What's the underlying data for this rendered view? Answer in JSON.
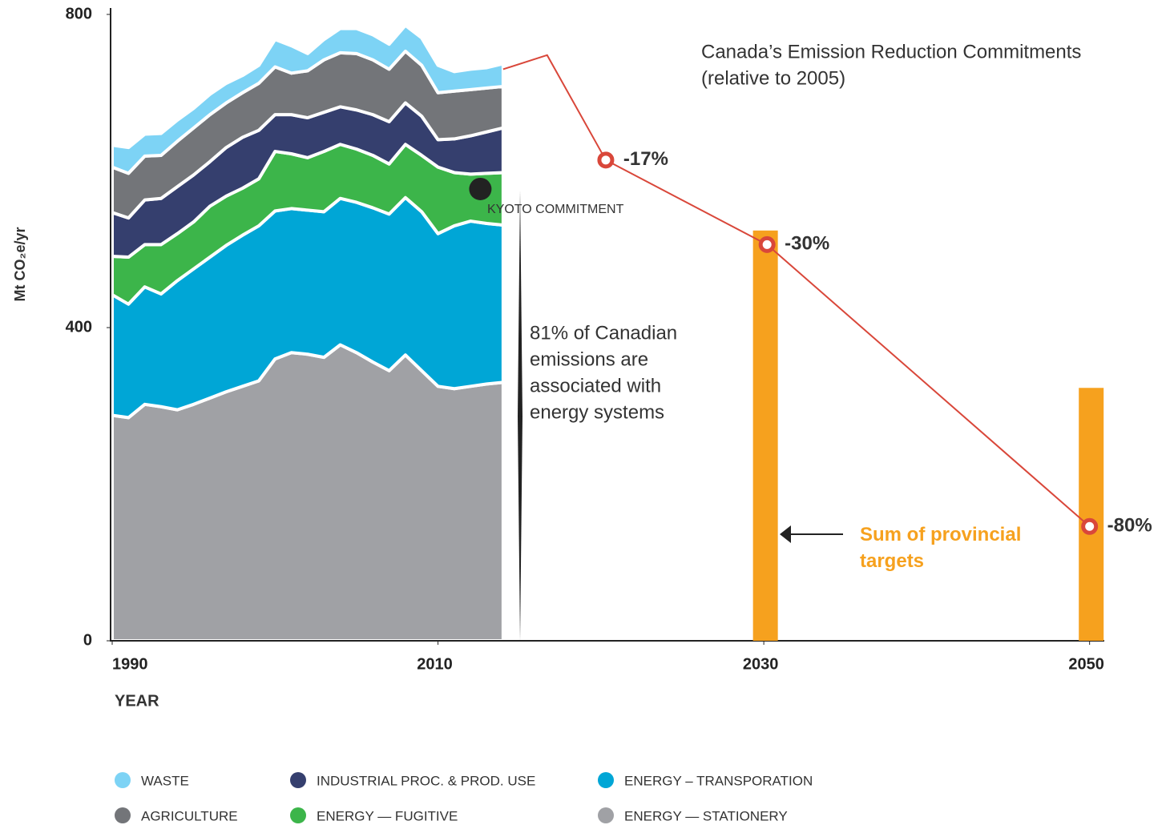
{
  "chart_data": {
    "type": "area",
    "title": "Canada’s Emission Reduction Commitments",
    "subtitle": "(relative to 2005)",
    "y_label": "Mt CO₂e/yr",
    "x_label": "YEAR",
    "xlim": [
      1990,
      2051
    ],
    "xticks": [
      1990,
      2010,
      2030,
      2050
    ],
    "ylim": [
      0,
      800
    ],
    "yticks": [
      0,
      400,
      800
    ],
    "x": [
      1990,
      1991,
      1992,
      1993,
      1994,
      1995,
      1996,
      1997,
      1998,
      1999,
      2000,
      2001,
      2002,
      2003,
      2004,
      2005,
      2006,
      2007,
      2008,
      2009,
      2010,
      2011,
      2012,
      2013,
      2014
    ],
    "series": [
      {
        "name": "ENERGY — STATIONERY",
        "color": "#a0a1a5",
        "values": [
          288,
          285,
          302,
          299,
          295,
          302,
          310,
          318,
          325,
          332,
          360,
          368,
          366,
          362,
          378,
          368,
          356,
          345,
          365,
          345,
          325,
          322,
          325,
          328,
          330
        ]
      },
      {
        "name": "ENERGY – TRANSPORATION",
        "color": "#00a6d6",
        "values": [
          154,
          145,
          150,
          144,
          165,
          173,
          180,
          187,
          193,
          198,
          189,
          184,
          184,
          186,
          187,
          192,
          197,
          200,
          201,
          203,
          195,
          208,
          211,
          205,
          201
        ]
      },
      {
        "name": "ENERGY — FUGITIVE",
        "color": "#3cb54a",
        "values": [
          49,
          60,
          54,
          63,
          60,
          60,
          65,
          63,
          60,
          60,
          76,
          70,
          67,
          77,
          69,
          68,
          67,
          64,
          68,
          72,
          85,
          68,
          60,
          64,
          67
        ]
      },
      {
        "name": "INDUSTRIAL PROC. & PROD. USE",
        "color": "#353f6e",
        "values": [
          56,
          50,
          57,
          59,
          60,
          60,
          57,
          62,
          65,
          62,
          47,
          50,
          51,
          50,
          48,
          50,
          52,
          54,
          53,
          50,
          35,
          43,
          49,
          53,
          57
        ]
      },
      {
        "name": "AGRICULTURE",
        "color": "#737579",
        "values": [
          58,
          57,
          56,
          55,
          58,
          60,
          60,
          57,
          57,
          60,
          61,
          53,
          60,
          67,
          69,
          72,
          70,
          67,
          66,
          65,
          60,
          61,
          59,
          56,
          53
        ]
      },
      {
        "name": "WASTE",
        "color": "#7dd3f5",
        "values": [
          28,
          33,
          28,
          28,
          27,
          25,
          26,
          25,
          22,
          23,
          35,
          35,
          22,
          26,
          31,
          32,
          32,
          32,
          33,
          35,
          35,
          25,
          26,
          26,
          29
        ]
      }
    ],
    "commitments": {
      "color": "#d9473a",
      "x": [
        2014,
        2016.7,
        2020.3,
        2030.2,
        2050
      ],
      "values": [
        730,
        748,
        614,
        506,
        146
      ],
      "labels": [
        null,
        null,
        "-17%",
        "-30%",
        "-80%"
      ]
    },
    "provincial_targets": {
      "color": "#f6a11e",
      "label": "Sum of provincial targets",
      "x": [
        2030.1,
        2050.1
      ],
      "values": [
        524,
        323
      ]
    },
    "kyoto": {
      "label": "KYOTO COMMITMENT",
      "x": 2012.6,
      "value": 577
    },
    "energy_note": [
      "81% of Canadian",
      "emissions are",
      "associated with",
      "energy systems"
    ]
  }
}
